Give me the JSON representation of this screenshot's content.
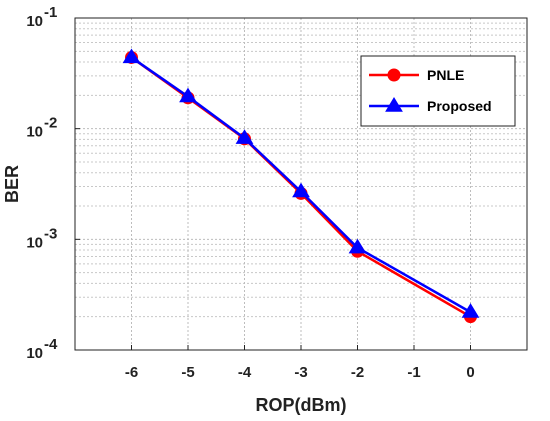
{
  "chart_data": {
    "type": "line",
    "xlabel": "ROP(dBm)",
    "ylabel": "BER",
    "xlim": [
      -7,
      1
    ],
    "ylim": [
      0.0001,
      0.1
    ],
    "yscale": "log",
    "x_ticks": [
      -6,
      -5,
      -4,
      -3,
      -2,
      -1,
      0
    ],
    "y_ticks": [
      {
        "mantissa": "10",
        "exponent": "-4",
        "value": 0.0001
      },
      {
        "mantissa": "10",
        "exponent": "-3",
        "value": 0.001
      },
      {
        "mantissa": "10",
        "exponent": "-2",
        "value": 0.01
      },
      {
        "mantissa": "10",
        "exponent": "-1",
        "value": 0.1
      }
    ],
    "grid": true,
    "legend_position": "top-right",
    "series": [
      {
        "name": "PNLE",
        "color": "#ff0000",
        "marker": "circle",
        "x": [
          -6,
          -5,
          -4,
          -3,
          -2,
          0
        ],
        "y": [
          0.044,
          0.019,
          0.0081,
          0.0026,
          0.00078,
          0.0002
        ]
      },
      {
        "name": "Proposed",
        "color": "#0000ff",
        "marker": "triangle",
        "x": [
          -6,
          -5,
          -4,
          -3,
          -2,
          0
        ],
        "y": [
          0.044,
          0.0195,
          0.0082,
          0.0027,
          0.00084,
          0.00022
        ]
      }
    ]
  }
}
